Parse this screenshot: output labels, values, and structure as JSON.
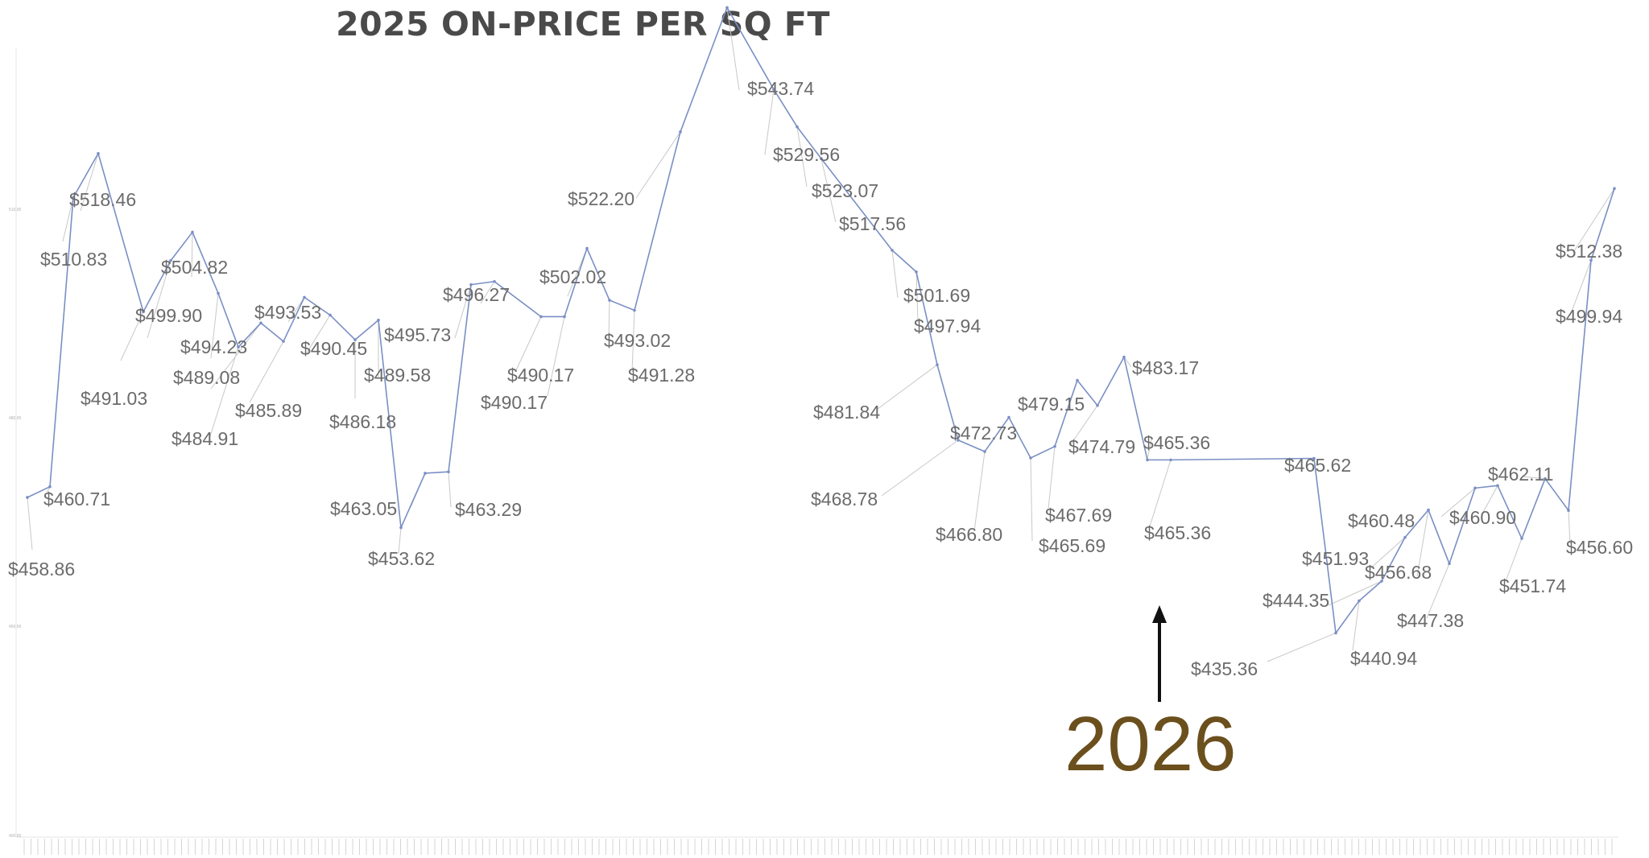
{
  "chart_data": {
    "type": "line",
    "title": "2025 ON-PRICE PER SQ FT",
    "xlabel": "",
    "ylabel": "",
    "ylim": [
      400,
      550
    ],
    "grid": false,
    "legend": "none",
    "colors": {
      "line": "#7a8fc4",
      "label": "#6b6b6b",
      "leader": "#c8c8c8",
      "title": "#4a4a4a",
      "annotation": "#6b4f1d",
      "arrow": "#111111"
    },
    "series": [
      {
        "values": [
          458.86,
          460.71,
          510.83,
          518.46,
          491.03,
          499.9,
          504.82,
          494.23,
          484.91,
          489.08,
          485.89,
          493.53,
          490.45,
          486.18,
          489.58,
          453.62,
          463.05,
          463.29,
          495.73,
          496.27,
          490.17,
          490.17,
          502.02,
          493.02,
          491.28,
          522.2,
          543.74,
          529.56,
          523.07,
          517.56,
          501.69,
          497.94,
          481.84,
          468.78,
          466.8,
          472.73,
          465.69,
          467.69,
          479.15,
          474.79,
          483.17,
          465.36,
          465.36,
          465.62,
          435.36,
          440.94,
          444.35,
          451.93,
          456.68,
          447.38,
          460.48,
          460.9,
          451.74,
          462.11,
          456.6,
          499.94,
          512.38
        ]
      }
    ],
    "labels": [
      "$458.86",
      "$460.71",
      "$510.83",
      "$518.46",
      "$491.03",
      "$499.90",
      "$504.82",
      "$494.23",
      "$484.91",
      "$489.08",
      "$485.89",
      "$493.53",
      "$490.45",
      "$486.18",
      "$489.58",
      "$453.62",
      "$463.05",
      "$463.29",
      "$495.73",
      "$496.27",
      "$490.17",
      "$490.17",
      "$502.02",
      "$493.02",
      "$491.28",
      "$522.20",
      "$543.74",
      "$529.56",
      "$523.07",
      "$517.56",
      "$501.69",
      "$497.94",
      "$481.84",
      "$468.78",
      "$466.80",
      "$472.73",
      "$465.69",
      "$467.69",
      "$479.15",
      "$474.79",
      "$483.17",
      "$465.36",
      "$465.36",
      "$465.62",
      "$435.36",
      "$440.94",
      "$444.35",
      "$451.93",
      "$456.68",
      "$447.38",
      "$460.48",
      "$460.90",
      "$451.74",
      "$462.11",
      "$456.60",
      "$499.94",
      "$512.38"
    ],
    "y_ticks": [
      "510.00",
      "480.00",
      "450.00",
      "400.00"
    ],
    "annotations": [
      {
        "text": "2026",
        "arrow": "up"
      }
    ]
  }
}
